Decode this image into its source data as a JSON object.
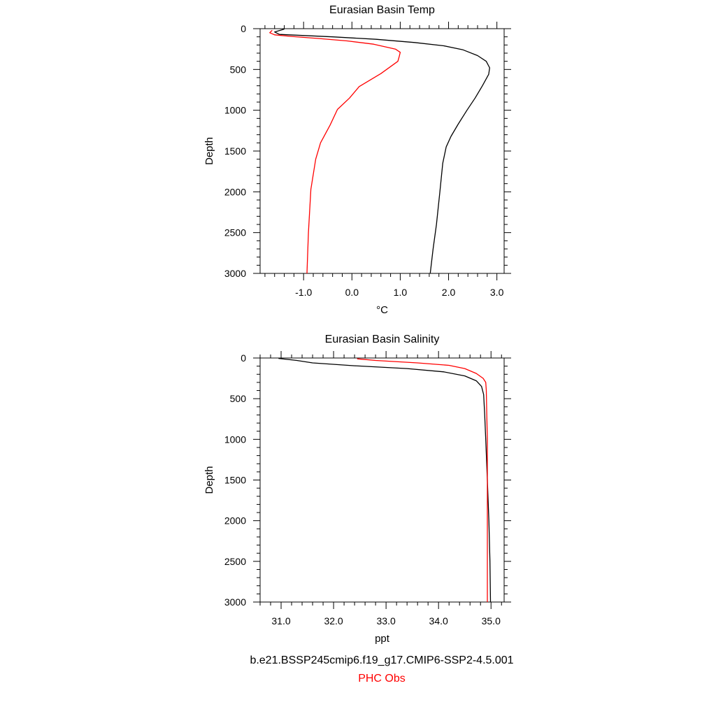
{
  "colors": {
    "model": "#000000",
    "obs": "#ff0000"
  },
  "legend": {
    "model_label": "b.e21.BSSP245cmip6.f19_g17.CMIP6-SSP2-4.5.001",
    "obs_label": "PHC Obs"
  },
  "chart_data": [
    {
      "type": "line",
      "title": "Eurasian Basin Temp",
      "xlabel": "°C",
      "ylabel": "Depth",
      "xlim": [
        -1.9,
        3.15
      ],
      "ylim": [
        0,
        3000
      ],
      "y_inverted": true,
      "x_ticks": [
        -1.0,
        0.0,
        1.0,
        2.0,
        3.0
      ],
      "x_tick_labels": [
        "-1.0",
        "0.0",
        "1.0",
        "2.0",
        "3.0"
      ],
      "y_ticks": [
        0,
        500,
        1000,
        1500,
        2000,
        2500,
        3000
      ],
      "y_tick_labels": [
        "0",
        "500",
        "1000",
        "1500",
        "2000",
        "2500",
        "3000"
      ],
      "series": [
        {
          "name": "b.e21.BSSP245cmip6.f19_g17.CMIP6-SSP2-4.5.001",
          "color": "#000000",
          "points": [
            [
              -1.4,
              5
            ],
            [
              -1.6,
              40
            ],
            [
              -1.5,
              70
            ],
            [
              -0.4,
              100
            ],
            [
              0.5,
              130
            ],
            [
              1.3,
              170
            ],
            [
              1.9,
              210
            ],
            [
              2.3,
              260
            ],
            [
              2.6,
              330
            ],
            [
              2.78,
              400
            ],
            [
              2.85,
              480
            ],
            [
              2.83,
              560
            ],
            [
              2.7,
              700
            ],
            [
              2.55,
              850
            ],
            [
              2.38,
              1000
            ],
            [
              2.2,
              1170
            ],
            [
              2.05,
              1320
            ],
            [
              1.95,
              1450
            ],
            [
              1.88,
              1650
            ],
            [
              1.82,
              2000
            ],
            [
              1.75,
              2400
            ],
            [
              1.68,
              2700
            ],
            [
              1.62,
              3000
            ]
          ]
        },
        {
          "name": "PHC Obs",
          "color": "#ff0000",
          "points": [
            [
              -1.65,
              20
            ],
            [
              -1.7,
              50
            ],
            [
              -1.6,
              75
            ],
            [
              -1.25,
              95
            ],
            [
              -0.7,
              120
            ],
            [
              -0.1,
              150
            ],
            [
              0.45,
              190
            ],
            [
              0.9,
              250
            ],
            [
              1.0,
              290
            ],
            [
              0.98,
              340
            ],
            [
              0.95,
              400
            ],
            [
              0.6,
              550
            ],
            [
              0.15,
              710
            ],
            [
              -0.05,
              850
            ],
            [
              -0.3,
              990
            ],
            [
              -0.45,
              1180
            ],
            [
              -0.65,
              1400
            ],
            [
              -0.75,
              1600
            ],
            [
              -0.85,
              1970
            ],
            [
              -0.9,
              2500
            ],
            [
              -0.93,
              3000
            ]
          ]
        }
      ]
    },
    {
      "type": "line",
      "title": "Eurasian Basin Salinity",
      "xlabel": "ppt",
      "ylabel": "Depth",
      "xlim": [
        30.6,
        35.25
      ],
      "ylim": [
        0,
        3000
      ],
      "y_inverted": true,
      "x_ticks": [
        31.0,
        32.0,
        33.0,
        34.0,
        35.0
      ],
      "x_tick_labels": [
        "31.0",
        "32.0",
        "33.0",
        "34.0",
        "35.0"
      ],
      "y_ticks": [
        0,
        500,
        1000,
        1500,
        2000,
        2500,
        3000
      ],
      "y_tick_labels": [
        "0",
        "500",
        "1000",
        "1500",
        "2000",
        "2500",
        "3000"
      ],
      "series": [
        {
          "name": "b.e21.BSSP245cmip6.f19_g17.CMIP6-SSP2-4.5.001",
          "color": "#000000",
          "points": [
            [
              30.95,
              5
            ],
            [
              31.3,
              30
            ],
            [
              31.6,
              60
            ],
            [
              32.4,
              95
            ],
            [
              33.4,
              130
            ],
            [
              34.1,
              170
            ],
            [
              34.5,
              220
            ],
            [
              34.72,
              280
            ],
            [
              34.82,
              350
            ],
            [
              34.86,
              450
            ],
            [
              34.88,
              700
            ],
            [
              34.9,
              1000
            ],
            [
              34.93,
              1500
            ],
            [
              34.96,
              2000
            ],
            [
              34.98,
              2500
            ],
            [
              34.99,
              3000
            ]
          ]
        },
        {
          "name": "PHC Obs",
          "color": "#ff0000",
          "points": [
            [
              32.45,
              10
            ],
            [
              32.8,
              30
            ],
            [
              33.6,
              60
            ],
            [
              34.2,
              90
            ],
            [
              34.5,
              130
            ],
            [
              34.72,
              190
            ],
            [
              34.85,
              250
            ],
            [
              34.9,
              300
            ],
            [
              34.91,
              400
            ],
            [
              34.92,
              700
            ],
            [
              34.93,
              1000
            ],
            [
              34.93,
              1500
            ],
            [
              34.93,
              2000
            ],
            [
              34.93,
              2500
            ],
            [
              34.93,
              3000
            ]
          ]
        }
      ]
    }
  ]
}
